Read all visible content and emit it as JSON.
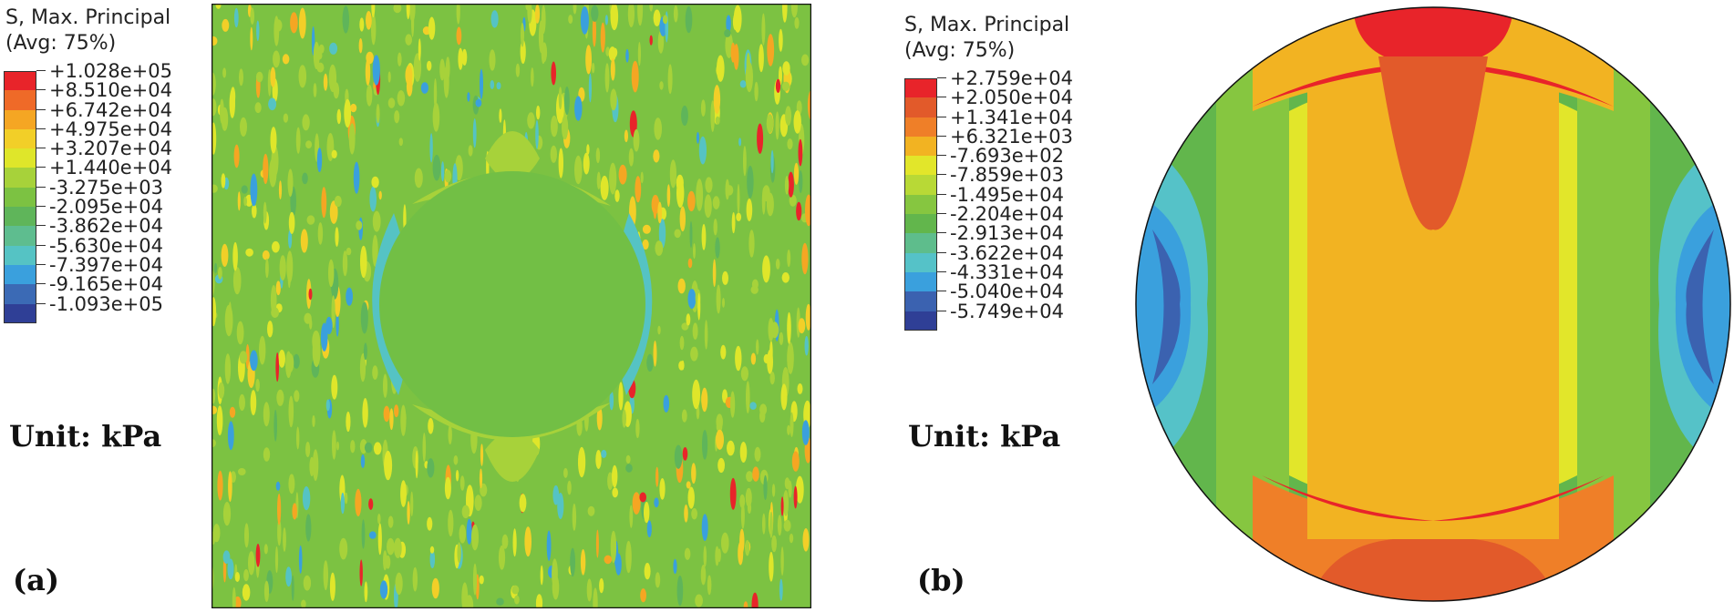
{
  "panel_a": {
    "legend_title": "S, Max. Principal\n(Avg: 75%)",
    "legend": [
      {
        "label": "+1.028e+05",
        "color": "#e8242a"
      },
      {
        "label": "+8.510e+04",
        "color": "#ef6a28"
      },
      {
        "label": "+6.742e+04",
        "color": "#f5a623"
      },
      {
        "label": "+4.975e+04",
        "color": "#f2cf28"
      },
      {
        "label": "+3.207e+04",
        "color": "#dfe62a"
      },
      {
        "label": "+1.440e+04",
        "color": "#a7d23a"
      },
      {
        "label": "-3.275e+03",
        "color": "#7cc242"
      },
      {
        "label": "-2.095e+04",
        "color": "#5fb55a"
      },
      {
        "label": "-3.862e+04",
        "color": "#5ebd8f"
      },
      {
        "label": "-5.630e+04",
        "color": "#55c3c4"
      },
      {
        "label": "-7.397e+04",
        "color": "#3aa0dd"
      },
      {
        "label": "-9.165e+04",
        "color": "#3b6ab5"
      },
      {
        "label": "-1.093e+05",
        "color": "#2f3f96"
      }
    ],
    "unit": "Unit: kPa",
    "panel_label": "(a)"
  },
  "panel_b": {
    "legend_title": "S, Max. Principal\n(Avg: 75%)",
    "legend": [
      {
        "label": "+2.759e+04",
        "color": "#e8242a"
      },
      {
        "label": "+2.050e+04",
        "color": "#e25a2a"
      },
      {
        "label": "+1.341e+04",
        "color": "#ef7f28"
      },
      {
        "label": "+6.321e+03",
        "color": "#f2b322"
      },
      {
        "label": "-7.693e+02",
        "color": "#e2e62a"
      },
      {
        "label": "-7.859e+03",
        "color": "#b8d936"
      },
      {
        "label": "-1.495e+04",
        "color": "#86c640"
      },
      {
        "label": "-2.204e+04",
        "color": "#62b64c"
      },
      {
        "label": "-2.913e+04",
        "color": "#5ebd8c"
      },
      {
        "label": "-3.622e+04",
        "color": "#55c2c8"
      },
      {
        "label": "-4.331e+04",
        "color": "#3aa0dd"
      },
      {
        "label": "-5.040e+04",
        "color": "#3b62b0"
      },
      {
        "label": "-5.749e+04",
        "color": "#2f3f96"
      }
    ],
    "unit": "Unit: kPa",
    "panel_label": "(b)"
  }
}
